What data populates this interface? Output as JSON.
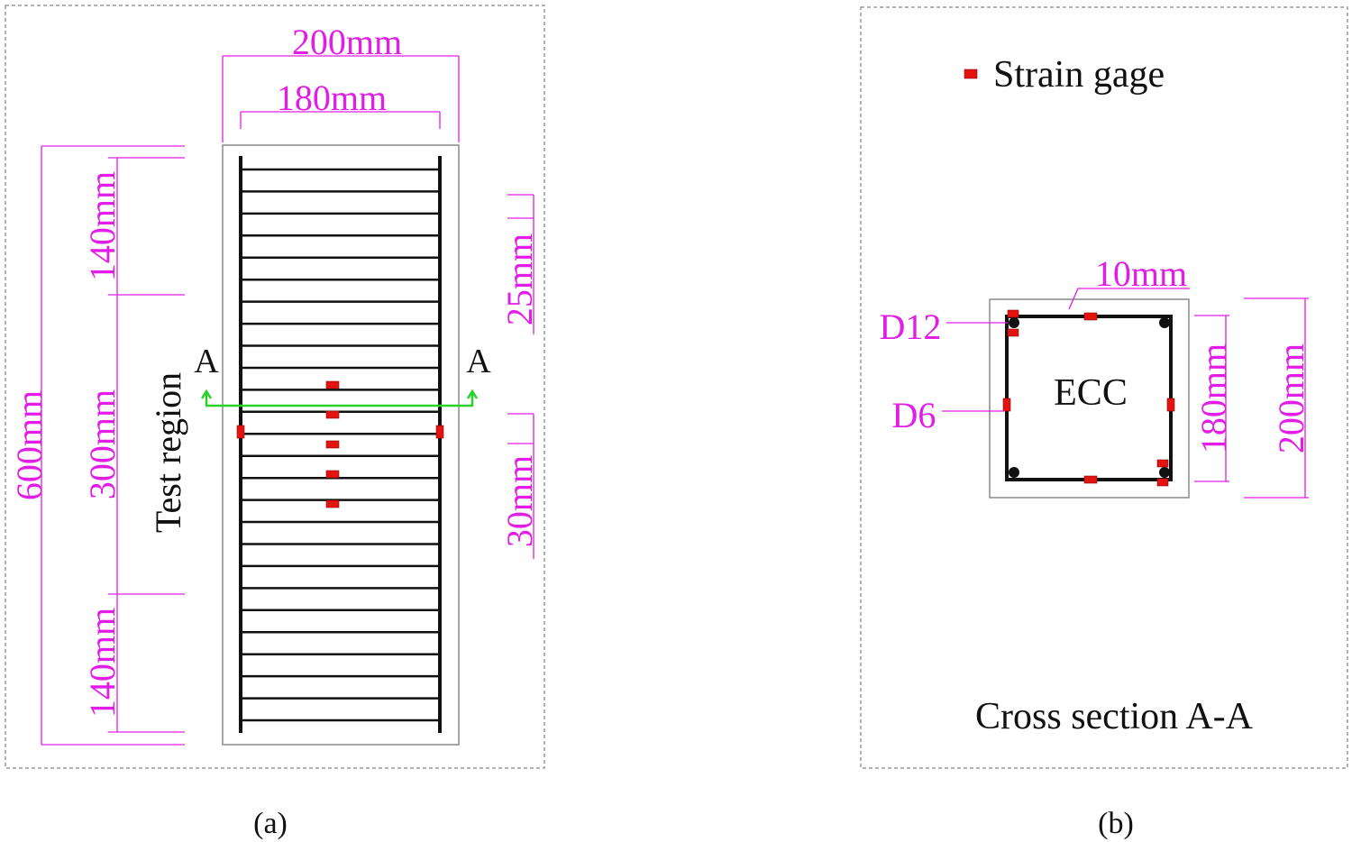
{
  "colors": {
    "dimension": "#e21ee6",
    "rebar": "#111111",
    "gage": "#e3130f",
    "section_line": "#2bd12b",
    "panel_border": "#9a9a9a",
    "outline": "#8a8a8a"
  },
  "panel_a": {
    "caption": "(a)",
    "dim_top_outer": "200mm",
    "dim_top_inner": "180mm",
    "dim_total": "600mm",
    "dim_end_top": "140mm",
    "dim_test": "300mm",
    "dim_end_bottom": "140mm",
    "dim_stirrup_end": "25mm",
    "dim_stirrup_test": "30mm",
    "test_region_label": "Test region",
    "section_mark_left": "A",
    "section_mark_right": "A",
    "stirrup_count": 26,
    "gage_count_center": 5
  },
  "panel_b": {
    "caption": "(b)",
    "legend_label": "Strain gage",
    "cover_label": "10mm",
    "long_bar_label": "D12",
    "stirrup_label": "D6",
    "material_label": "ECC",
    "dim_inner": "180mm",
    "dim_outer": "200mm",
    "title": "Cross section A-A"
  }
}
